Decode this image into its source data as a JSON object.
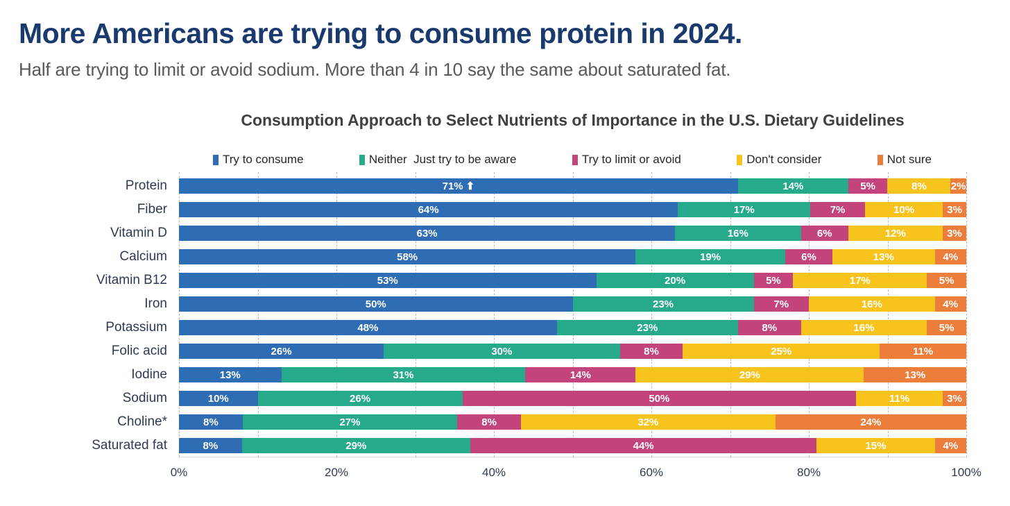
{
  "header": {
    "title": "More Americans are trying to consume protein in 2024.",
    "subtitle": "Half are trying to limit or avoid sodium. More than 4 in 10 say the same about saturated fat."
  },
  "chart_data": {
    "type": "bar",
    "variant": "horizontal-stacked",
    "title": "Consumption Approach to Select Nutrients of Importance in the U.S. Dietary Guidelines",
    "categories": [
      "Protein",
      "Fiber",
      "Vitamin D",
      "Calcium",
      "Vitamin B12",
      "Iron",
      "Potassium",
      "Folic acid",
      "Iodine",
      "Sodium",
      "Choline*",
      "Saturated fat"
    ],
    "series": [
      {
        "name": "Try to consume",
        "color": "#2e6db4",
        "values": [
          71,
          64,
          63,
          58,
          53,
          50,
          48,
          26,
          13,
          10,
          8,
          8
        ]
      },
      {
        "name": "Neither  Just try to be aware",
        "color": "#27a98b",
        "values": [
          14,
          17,
          16,
          19,
          20,
          23,
          23,
          30,
          31,
          26,
          27,
          29
        ]
      },
      {
        "name": "Try to limit or avoid",
        "color": "#c2447b",
        "values": [
          5,
          7,
          6,
          6,
          5,
          7,
          8,
          8,
          14,
          50,
          8,
          44
        ]
      },
      {
        "name": "Don't consider",
        "color": "#f8c31c",
        "values": [
          8,
          10,
          12,
          13,
          17,
          16,
          16,
          25,
          29,
          11,
          32,
          15
        ]
      },
      {
        "name": "Not sure",
        "color": "#ed7d3b",
        "values": [
          2,
          3,
          3,
          4,
          5,
          4,
          5,
          11,
          13,
          3,
          24,
          4
        ]
      }
    ],
    "value_suffix": "%",
    "annotation": {
      "category_index": 0,
      "series_index": 0,
      "glyph": "⬆"
    },
    "x_ticks": [
      "0%",
      "20%",
      "40%",
      "60%",
      "80%",
      "100%"
    ],
    "xlim": [
      0,
      100
    ],
    "grid": "dashed vertical lines every 10%",
    "legend_position": "top"
  }
}
